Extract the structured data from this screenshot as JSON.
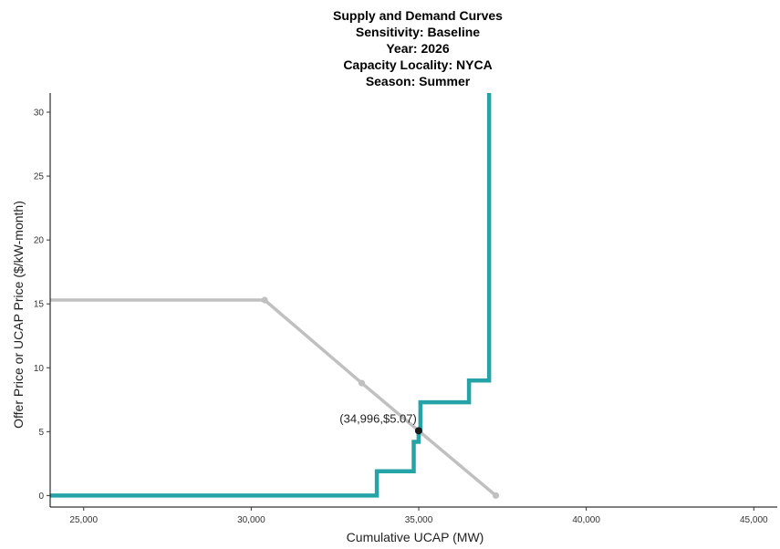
{
  "chart_data": {
    "type": "line",
    "title_lines": [
      "Supply and Demand Curves",
      "Sensitivity: Baseline",
      "Year: 2026",
      "Capacity Locality: NYCA",
      "Season: Summer"
    ],
    "xlabel": "Cumulative UCAP (MW)",
    "ylabel": "Offer Price or UCAP Price ($/kW-month)",
    "xlim": [
      24000,
      45700
    ],
    "ylim": [
      -0.9,
      31.5
    ],
    "xticks": [
      25000,
      30000,
      35000,
      40000,
      45000
    ],
    "xtick_labels": [
      "25,000",
      "30,000",
      "35,000",
      "40,000",
      "45,000"
    ],
    "yticks": [
      0,
      5,
      10,
      15,
      20,
      25,
      30
    ],
    "ytick_labels": [
      "0",
      "5",
      "10",
      "15",
      "20",
      "25",
      "30"
    ],
    "grid": false,
    "series": [
      {
        "role": "demand",
        "color": "#c0c0c0",
        "points": [
          [
            24000,
            15.3
          ],
          [
            30400,
            15.3
          ],
          [
            33300,
            8.8
          ],
          [
            37300,
            0
          ]
        ],
        "markers": [
          [
            30400,
            15.3
          ],
          [
            33300,
            8.8
          ],
          [
            37300,
            0
          ]
        ]
      },
      {
        "role": "supply",
        "color": "#26a3a6",
        "step_points": [
          [
            24000,
            0
          ],
          [
            33750,
            0
          ],
          [
            33750,
            1.9
          ],
          [
            34850,
            1.9
          ],
          [
            34850,
            4.2
          ],
          [
            34996,
            4.2
          ],
          [
            34996,
            5.07
          ],
          [
            35050,
            5.07
          ],
          [
            35050,
            7.3
          ],
          [
            36500,
            7.3
          ],
          [
            36500,
            9.0
          ],
          [
            37100,
            9.0
          ],
          [
            37100,
            31.5
          ]
        ]
      }
    ],
    "intersection": {
      "x": 34996,
      "y": 5.07,
      "label": "(34,996,$5.07)"
    }
  }
}
